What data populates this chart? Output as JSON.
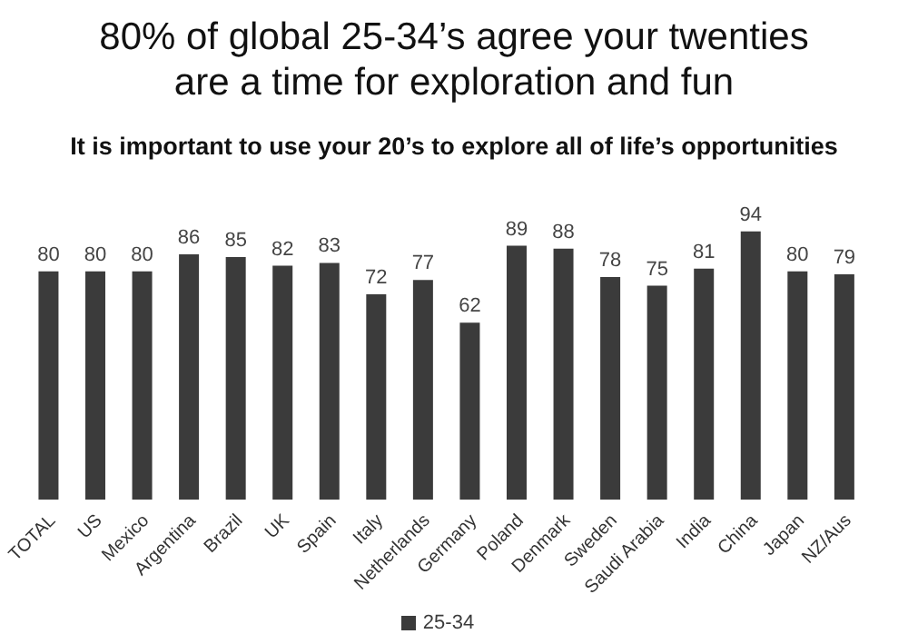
{
  "chart_data": {
    "type": "bar",
    "title": "80% of global 25-34’s agree your twenties are a time for exploration and fun",
    "subtitle": "It is important to use your 20’s to explore all of life’s opportunities",
    "categories": [
      "TOTAL",
      "US",
      "Mexico",
      "Argentina",
      "Brazil",
      "UK",
      "Spain",
      "Italy",
      "Netherlands",
      "Germany",
      "Poland",
      "Denmark",
      "Sweden",
      "Saudi Arabia",
      "India",
      "China",
      "Japan",
      "NZ/Aus"
    ],
    "series": [
      {
        "name": "25-34",
        "color": "#3b3b3b",
        "values": [
          80,
          80,
          80,
          86,
          85,
          82,
          83,
          72,
          77,
          62,
          89,
          88,
          78,
          75,
          81,
          94,
          80,
          79
        ]
      }
    ],
    "tick_labels": "x",
    "data_labels": true,
    "legend": "bottom"
  }
}
